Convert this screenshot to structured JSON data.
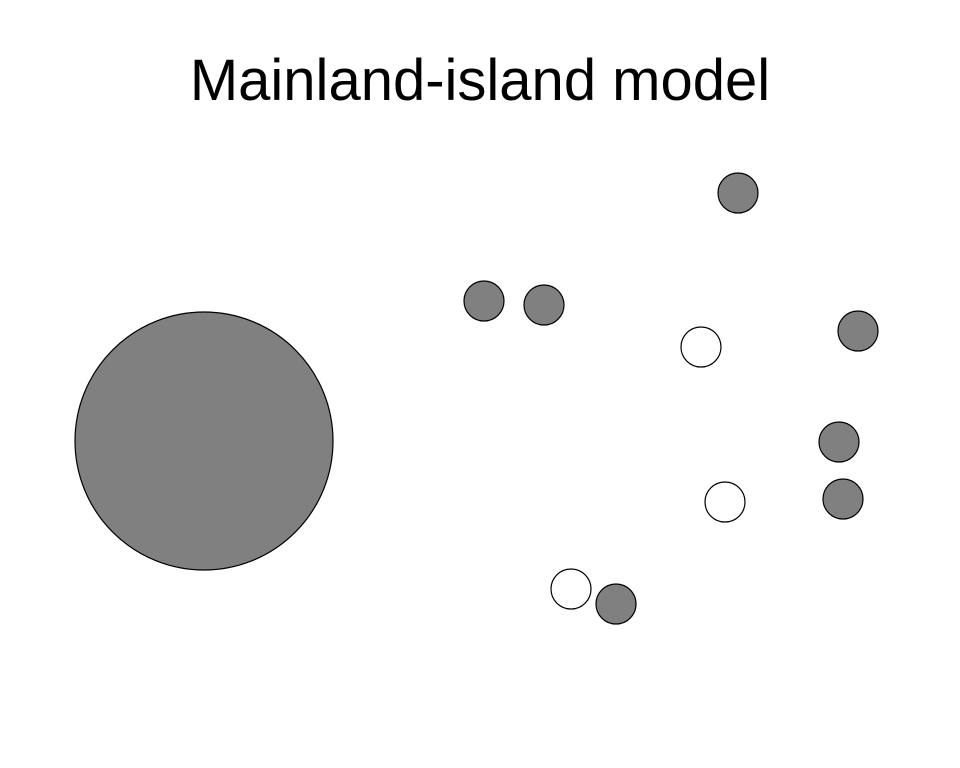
{
  "title": "Mainland-island model",
  "colors": {
    "occupied": "#808080",
    "empty": "#ffffff",
    "stroke": "#000000",
    "background": "#ffffff"
  },
  "legend_semantics": {
    "filled": "occupied",
    "hollow": "empty"
  },
  "mainland": {
    "state": "occupied"
  },
  "islands": [
    {
      "state": "occupied"
    },
    {
      "state": "occupied"
    },
    {
      "state": "occupied"
    },
    {
      "state": "empty"
    },
    {
      "state": "occupied"
    },
    {
      "state": "occupied"
    },
    {
      "state": "occupied"
    },
    {
      "state": "empty"
    },
    {
      "state": "empty"
    },
    {
      "state": "occupied"
    }
  ]
}
